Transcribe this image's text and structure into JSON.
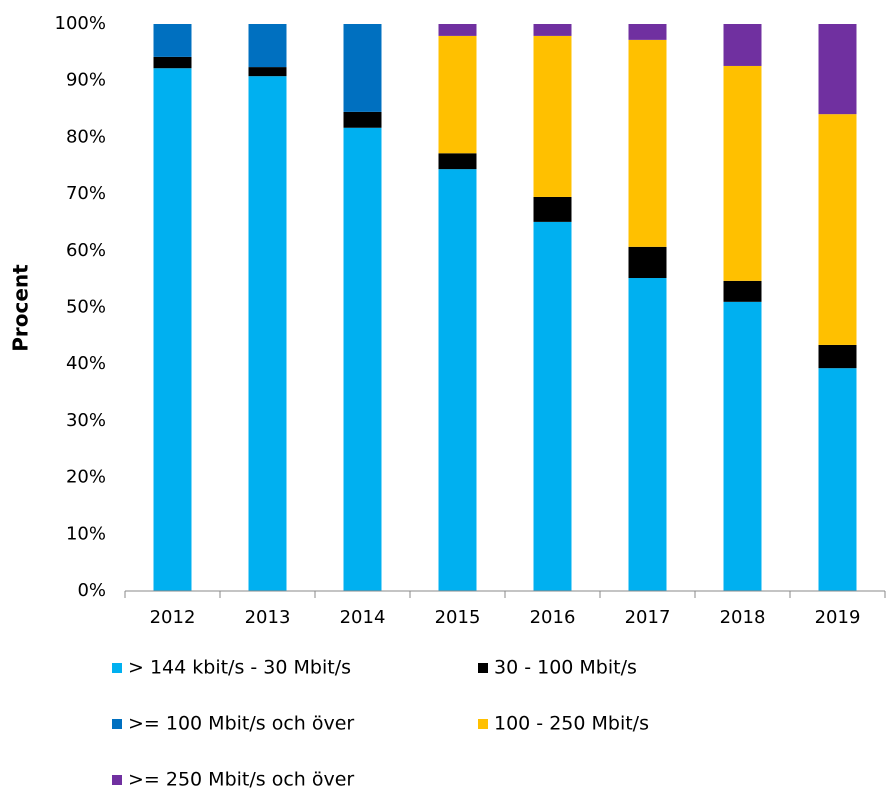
{
  "chart_data": {
    "type": "stacked_bar",
    "y_label": "Procent",
    "categories": [
      "2012",
      "2013",
      "2014",
      "2015",
      "2016",
      "2017",
      "2018",
      "2019"
    ],
    "series": [
      {
        "name": "> 144 kbit/s - 30 Mbit/s",
        "color": "#00b0f0",
        "values": [
          92.2,
          90.8,
          81.7,
          74.4,
          65.1,
          55.2,
          51.0,
          39.3
        ]
      },
      {
        "name": "30 - 100 Mbit/s",
        "color": "#000000",
        "values": [
          2.0,
          1.6,
          2.8,
          2.8,
          4.4,
          5.5,
          3.7,
          4.1
        ]
      },
      {
        "name": ">= 100 Mbit/s och över",
        "color": "#0070c0",
        "values": [
          5.8,
          7.6,
          15.5,
          0,
          0,
          0,
          0,
          0
        ]
      },
      {
        "name": "100 - 250 Mbit/s",
        "color": "#ffc000",
        "values": [
          0,
          0,
          0,
          20.7,
          28.4,
          36.5,
          37.9,
          40.7
        ]
      },
      {
        "name": ">= 250 Mbit/s och över",
        "color": "#7030a0",
        "values": [
          0,
          0,
          0,
          2.1,
          2.1,
          2.8,
          7.4,
          15.9
        ]
      }
    ],
    "ylim": [
      0,
      100
    ],
    "yticks": [
      {
        "value": 0,
        "label": "0%"
      },
      {
        "value": 10,
        "label": "10%"
      },
      {
        "value": 20,
        "label": "20%"
      },
      {
        "value": 30,
        "label": "30%"
      },
      {
        "value": 40,
        "label": "40%"
      },
      {
        "value": 50,
        "label": "50%"
      },
      {
        "value": 60,
        "label": "60%"
      },
      {
        "value": 70,
        "label": "70%"
      },
      {
        "value": 80,
        "label": "80%"
      },
      {
        "value": 90,
        "label": "90%"
      },
      {
        "value": 100,
        "label": "100%"
      }
    ]
  }
}
